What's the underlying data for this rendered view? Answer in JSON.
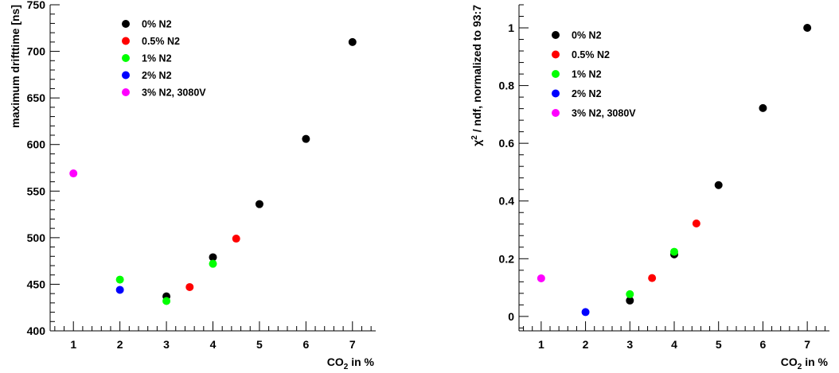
{
  "chart_data": [
    {
      "type": "scatter",
      "title": "",
      "xlabel_main": "CO",
      "xlabel_sub": "2",
      "xlabel_rest": " in %",
      "ylabel": "maximum drifttime  [ns]",
      "xlim": [
        0.5,
        7.5
      ],
      "ylim": [
        400,
        750
      ],
      "x_ticks": [
        1,
        2,
        3,
        4,
        5,
        6,
        7
      ],
      "y_ticks": [
        400,
        450,
        500,
        550,
        600,
        650,
        700,
        750
      ],
      "legend_position": "top-left",
      "series": [
        {
          "name": "0% N2",
          "color": "#000000",
          "points": [
            [
              3,
              437
            ],
            [
              4,
              479
            ],
            [
              5,
              536
            ],
            [
              6,
              606
            ],
            [
              7,
              710
            ]
          ]
        },
        {
          "name": "0.5% N2",
          "color": "#ff0000",
          "points": [
            [
              3.5,
              447
            ],
            [
              4.5,
              499
            ]
          ]
        },
        {
          "name": "1% N2",
          "color": "#00ff00",
          "points": [
            [
              2,
              455
            ],
            [
              3,
              432
            ],
            [
              4,
              472
            ]
          ]
        },
        {
          "name": "2% N2",
          "color": "#0000ff",
          "points": [
            [
              2,
              444
            ]
          ]
        },
        {
          "name": "3% N2, 3080V",
          "color": "#ff00ff",
          "points": [
            [
              1,
              569
            ]
          ]
        }
      ]
    },
    {
      "type": "scatter",
      "title": "",
      "xlabel_main": "CO",
      "xlabel_sub": "2",
      "xlabel_rest": " in %",
      "ylabel_main": "χ",
      "ylabel_sup": "2",
      "ylabel_rest": " / ndf, normalized to 93:7",
      "xlim": [
        0.5,
        7.5
      ],
      "ylim": [
        -0.05,
        1.08
      ],
      "x_ticks": [
        1,
        2,
        3,
        4,
        5,
        6,
        7
      ],
      "y_ticks": [
        0,
        0.2,
        0.4,
        0.6,
        0.8,
        1
      ],
      "y_tick_labels": [
        "0",
        "0.2",
        "0.4",
        "0.6",
        "0.8",
        "1"
      ],
      "legend_position": "top-left",
      "series": [
        {
          "name": "0% N2",
          "color": "#000000",
          "points": [
            [
              3,
              0.055
            ],
            [
              4,
              0.215
            ],
            [
              5,
              0.455
            ],
            [
              6,
              0.722
            ],
            [
              7,
              1.0
            ]
          ]
        },
        {
          "name": "0.5% N2",
          "color": "#ff0000",
          "points": [
            [
              3.5,
              0.133
            ],
            [
              4.5,
              0.322
            ]
          ]
        },
        {
          "name": "1% N2",
          "color": "#00ff00",
          "points": [
            [
              3,
              0.077
            ],
            [
              4,
              0.224
            ]
          ]
        },
        {
          "name": "2% N2",
          "color": "#0000ff",
          "points": [
            [
              2,
              0.015
            ]
          ]
        },
        {
          "name": "3% N2, 3080V",
          "color": "#ff00ff",
          "points": [
            [
              1,
              0.132
            ]
          ]
        }
      ]
    }
  ]
}
